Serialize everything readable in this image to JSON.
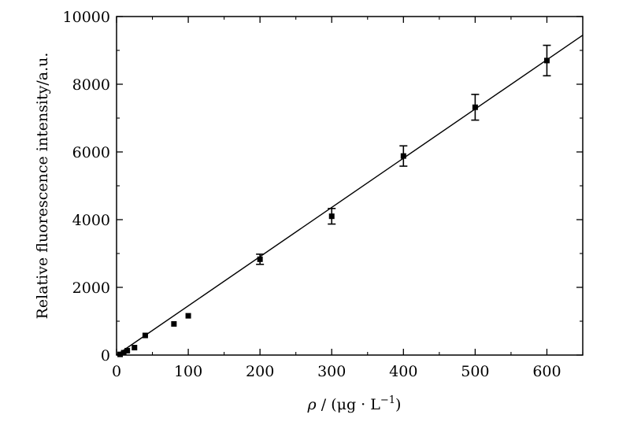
{
  "chart_data": {
    "type": "scatter",
    "title": "",
    "xlabel_symbol": "ρ",
    "xlabel_rest": " / (μg · L",
    "xlabel_exp": "−1",
    "xlabel_close": ")",
    "ylabel": "Relative fluorescence intensity/a.u.",
    "xlim": [
      0,
      650
    ],
    "ylim": [
      0,
      10000
    ],
    "xticks": [
      0,
      100,
      200,
      300,
      400,
      500,
      600
    ],
    "yticks": [
      0,
      2000,
      4000,
      6000,
      8000,
      10000
    ],
    "grid": false,
    "legend": "none",
    "points": [
      {
        "x": 5,
        "y": 20,
        "err": 0
      },
      {
        "x": 10,
        "y": 70,
        "err": 0
      },
      {
        "x": 15,
        "y": 130,
        "err": 0
      },
      {
        "x": 25,
        "y": 220,
        "err": 0
      },
      {
        "x": 40,
        "y": 580,
        "err": 0
      },
      {
        "x": 80,
        "y": 920,
        "err": 0
      },
      {
        "x": 100,
        "y": 1160,
        "err": 0
      },
      {
        "x": 200,
        "y": 2830,
        "err": 150
      },
      {
        "x": 300,
        "y": 4100,
        "err": 230
      },
      {
        "x": 400,
        "y": 5880,
        "err": 300
      },
      {
        "x": 500,
        "y": 7320,
        "err": 380
      },
      {
        "x": 600,
        "y": 8700,
        "err": 450
      }
    ],
    "fit_line": {
      "x": [
        0,
        650
      ],
      "y": [
        0,
        9450
      ]
    },
    "colors": {
      "marker": "#000000",
      "line": "#000000"
    }
  }
}
